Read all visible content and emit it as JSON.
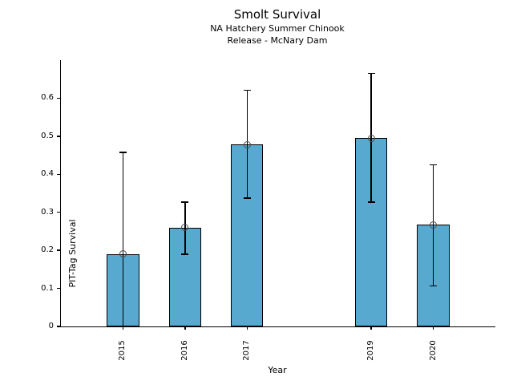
{
  "chart_data": {
    "type": "bar",
    "title": "Smolt Survival",
    "subtitle": [
      "NA Hatchery Summer Chinook",
      "Release - McNary Dam"
    ],
    "xlabel": "Year",
    "ylabel": "PIT-Tag Survival",
    "categories": [
      2015,
      2016,
      2017,
      2019,
      2020
    ],
    "values": [
      0.19,
      0.26,
      0.478,
      0.495,
      0.267
    ],
    "error_low": [
      0.0,
      0.19,
      0.337,
      0.327,
      0.107
    ],
    "error_high": [
      0.458,
      0.327,
      0.621,
      0.665,
      0.425
    ],
    "xlim": [
      2014,
      2021
    ],
    "ylim": [
      0,
      0.7
    ],
    "yticks": [
      0,
      0.1,
      0.2,
      0.3,
      0.4,
      0.5,
      0.6
    ],
    "ytick_labels": [
      "0",
      "0.1",
      "0.2",
      "0.3",
      "0.4",
      "0.5",
      "0.6"
    ],
    "missing_years": [
      2018
    ],
    "bar_width_years": 0.52,
    "bar_color": "#57A9CF",
    "bar_edge_color": "#000000",
    "error_color": "#000000",
    "marker": "open-circle",
    "marker_color": "#4a4a4a",
    "grid": false,
    "legend": null
  }
}
